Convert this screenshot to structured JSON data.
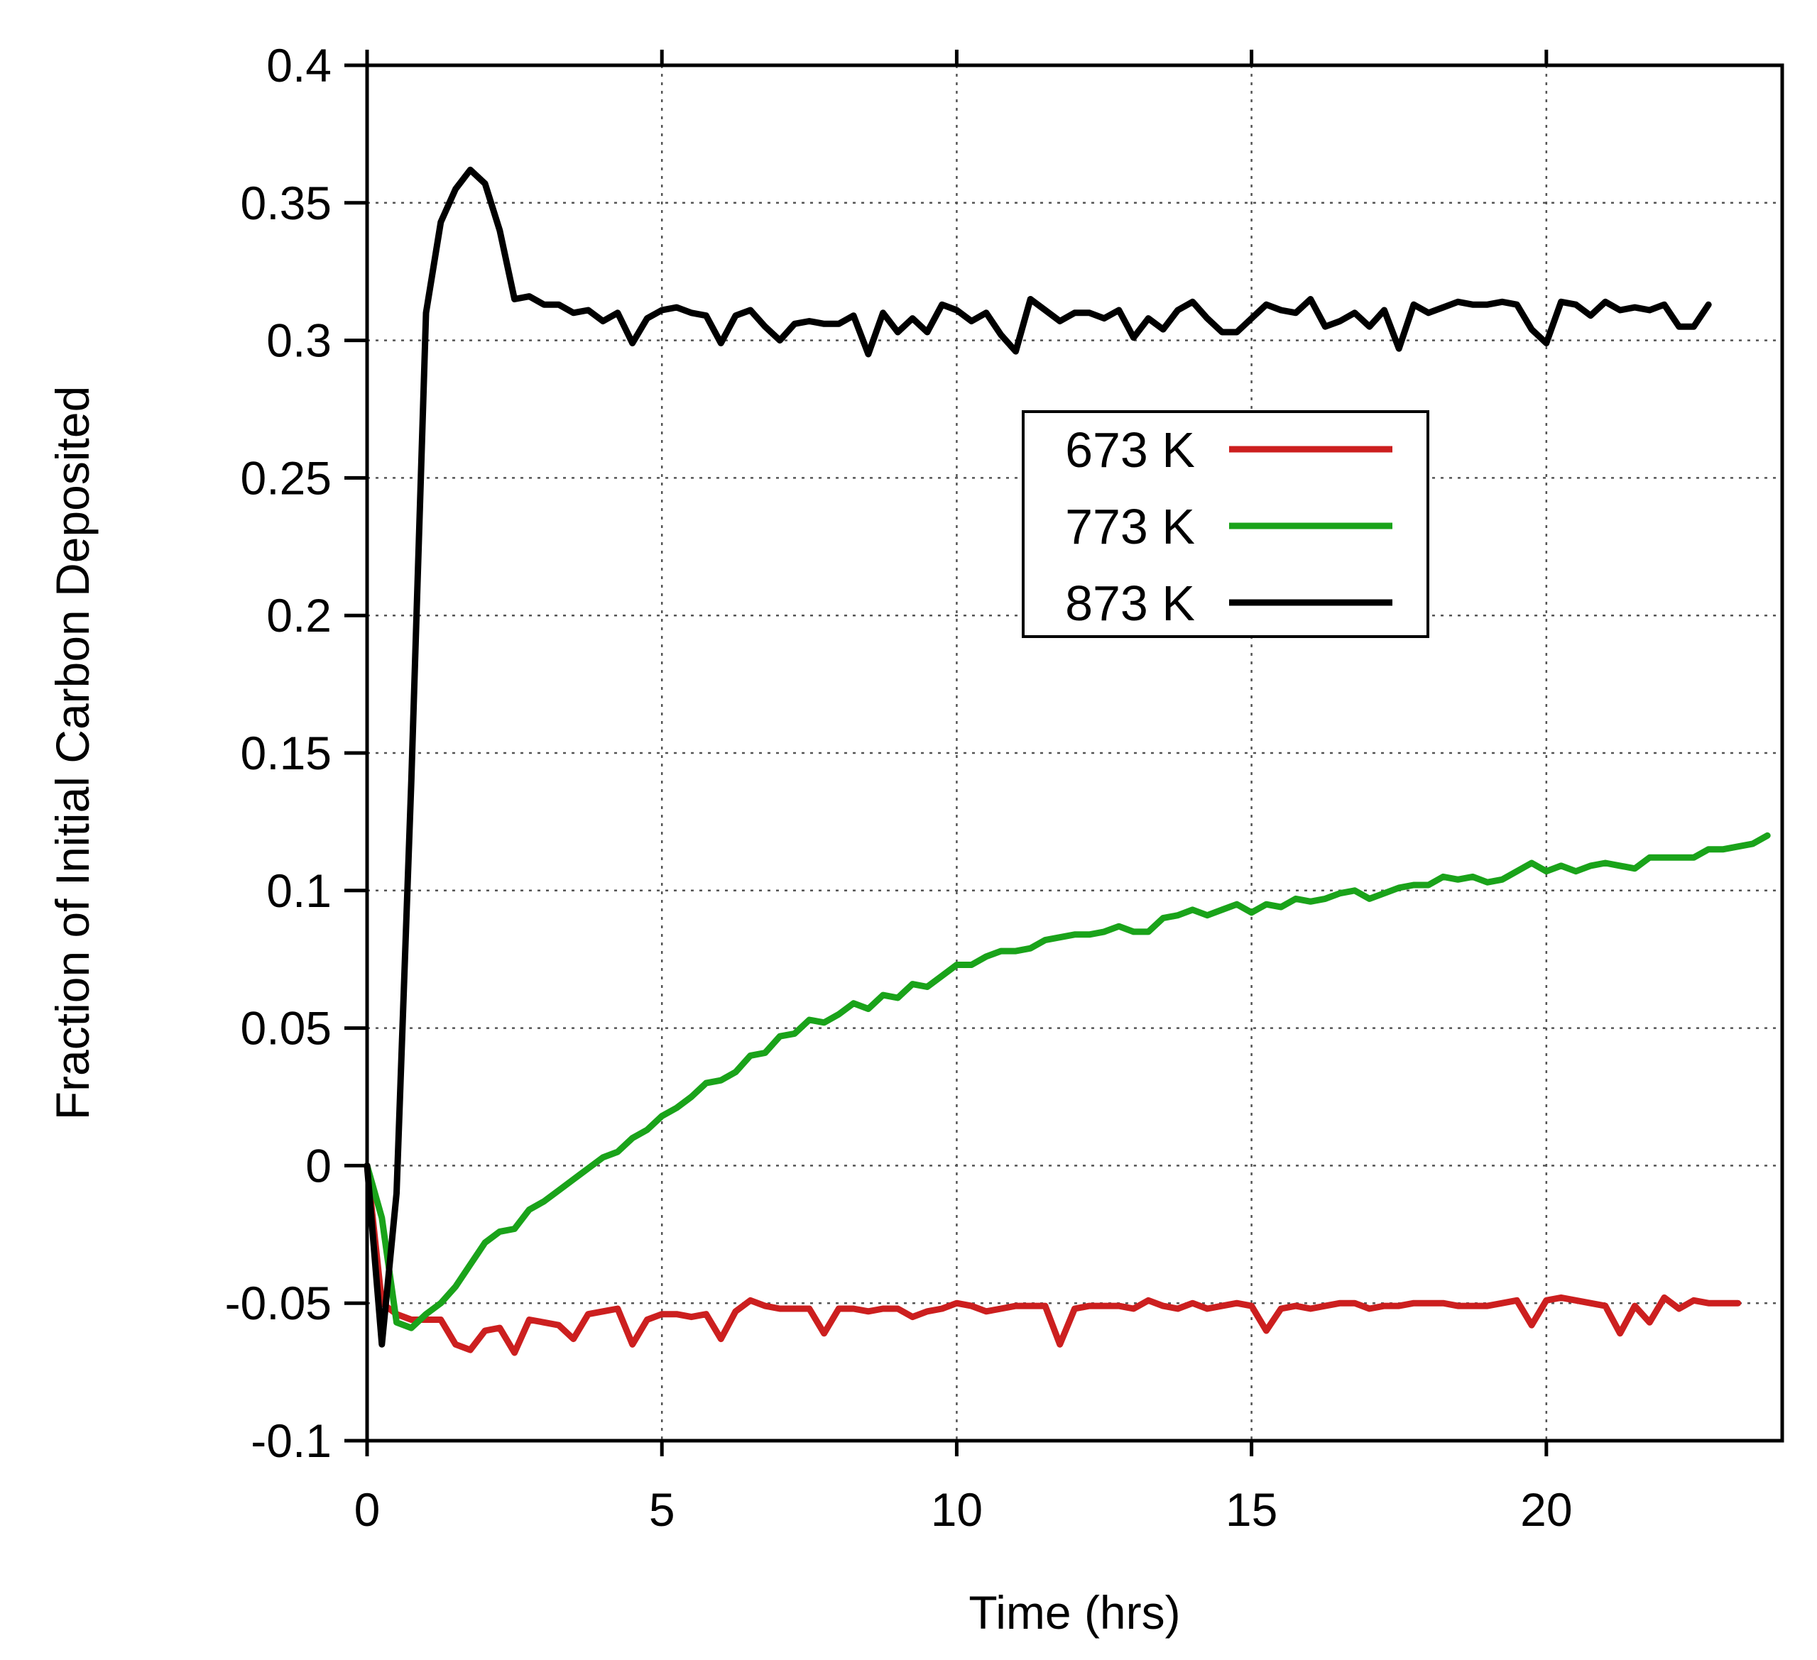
{
  "chart_data": {
    "type": "line",
    "title": "",
    "xlabel": "Time (hrs)",
    "ylabel": "Fraction of Initial Carbon Deposited",
    "xlim": [
      0,
      24
    ],
    "ylim": [
      -0.1,
      0.4
    ],
    "xticks": [
      0,
      5,
      10,
      15,
      20
    ],
    "xtick_labels": [
      "0",
      "5",
      "10",
      "15",
      "20"
    ],
    "yticks": [
      -0.1,
      -0.05,
      0,
      0.05,
      0.1,
      0.15,
      0.2,
      0.25,
      0.3,
      0.35,
      0.4
    ],
    "ytick_labels": [
      "-0.1",
      "-0.05",
      "0",
      "0.05",
      "0.1",
      "0.15",
      "0.2",
      "0.25",
      "0.3",
      "0.35",
      "0.4"
    ],
    "grid": true,
    "legend_position": "upper-center-right",
    "series": [
      {
        "name": "673 K",
        "color": "#cc1f1f",
        "x": [
          0,
          0.25,
          0.5,
          0.75,
          1.0,
          1.25,
          1.5,
          1.75,
          2.0,
          2.25,
          2.5,
          2.75,
          3.0,
          3.25,
          3.5,
          3.75,
          4.0,
          4.25,
          4.5,
          4.75,
          5.0,
          5.25,
          5.5,
          5.75,
          6.0,
          6.25,
          6.5,
          6.75,
          7.0,
          7.25,
          7.5,
          7.75,
          8.0,
          8.25,
          8.5,
          8.75,
          9.0,
          9.25,
          9.5,
          9.75,
          10.0,
          10.25,
          10.5,
          10.75,
          11.0,
          11.25,
          11.5,
          11.75,
          12.0,
          12.25,
          12.5,
          12.75,
          13.0,
          13.25,
          13.5,
          13.75,
          14.0,
          14.25,
          14.5,
          14.75,
          15.0,
          15.25,
          15.5,
          15.75,
          16.0,
          16.25,
          16.5,
          16.75,
          17.0,
          17.25,
          17.5,
          17.75,
          18.0,
          18.25,
          18.5,
          18.75,
          19.0,
          19.25,
          19.5,
          19.75,
          20.0,
          20.25,
          20.5,
          20.75,
          21.0,
          21.25,
          21.5,
          21.75,
          22.0,
          22.25,
          22.5,
          22.75,
          23.0,
          23.25
        ],
        "y": [
          0,
          -0.05,
          -0.054,
          -0.056,
          -0.056,
          -0.056,
          -0.065,
          -0.067,
          -0.06,
          -0.059,
          -0.068,
          -0.056,
          -0.057,
          -0.058,
          -0.063,
          -0.054,
          -0.053,
          -0.052,
          -0.065,
          -0.056,
          -0.054,
          -0.054,
          -0.055,
          -0.054,
          -0.063,
          -0.053,
          -0.049,
          -0.051,
          -0.052,
          -0.052,
          -0.052,
          -0.061,
          -0.052,
          -0.052,
          -0.053,
          -0.052,
          -0.052,
          -0.055,
          -0.053,
          -0.052,
          -0.05,
          -0.051,
          -0.053,
          -0.052,
          -0.051,
          -0.051,
          -0.051,
          -0.065,
          -0.052,
          -0.051,
          -0.051,
          -0.051,
          -0.052,
          -0.049,
          -0.051,
          -0.052,
          -0.05,
          -0.052,
          -0.051,
          -0.05,
          -0.051,
          -0.06,
          -0.052,
          -0.051,
          -0.052,
          -0.051,
          -0.05,
          -0.05,
          -0.052,
          -0.051,
          -0.051,
          -0.05,
          -0.05,
          -0.05,
          -0.051,
          -0.051,
          -0.051,
          -0.05,
          -0.049,
          -0.058,
          -0.049,
          -0.048,
          -0.049,
          -0.05,
          -0.051,
          -0.061,
          -0.051,
          -0.057,
          -0.048,
          -0.052,
          -0.049,
          -0.05,
          -0.05,
          -0.05
        ]
      },
      {
        "name": "773 K",
        "color": "#1aa31a",
        "x": [
          0,
          0.25,
          0.5,
          0.75,
          1.0,
          1.25,
          1.5,
          1.75,
          2.0,
          2.25,
          2.5,
          2.75,
          3.0,
          3.25,
          3.5,
          3.75,
          4.0,
          4.25,
          4.5,
          4.75,
          5.0,
          5.25,
          5.5,
          5.75,
          6.0,
          6.25,
          6.5,
          6.75,
          7.0,
          7.25,
          7.5,
          7.75,
          8.0,
          8.25,
          8.5,
          8.75,
          9.0,
          9.25,
          9.5,
          9.75,
          10.0,
          10.25,
          10.5,
          10.75,
          11.0,
          11.25,
          11.5,
          11.75,
          12.0,
          12.25,
          12.5,
          12.75,
          13.0,
          13.25,
          13.5,
          13.75,
          14.0,
          14.25,
          14.5,
          14.75,
          15.0,
          15.25,
          15.5,
          15.75,
          16.0,
          16.25,
          16.5,
          16.75,
          17.0,
          17.25,
          17.5,
          17.75,
          18.0,
          18.25,
          18.5,
          18.75,
          19.0,
          19.25,
          19.5,
          19.75,
          20.0,
          20.25,
          20.5,
          20.75,
          21.0,
          21.25,
          21.5,
          21.75,
          22.0,
          22.25,
          22.5,
          22.75,
          23.0,
          23.25,
          23.5,
          23.75
        ],
        "y": [
          0,
          -0.019,
          -0.057,
          -0.059,
          -0.054,
          -0.05,
          -0.044,
          -0.036,
          -0.028,
          -0.024,
          -0.023,
          -0.016,
          -0.013,
          -0.009,
          -0.005,
          -0.001,
          0.003,
          0.005,
          0.01,
          0.013,
          0.018,
          0.021,
          0.025,
          0.03,
          0.031,
          0.034,
          0.04,
          0.041,
          0.047,
          0.048,
          0.053,
          0.052,
          0.055,
          0.059,
          0.057,
          0.062,
          0.061,
          0.066,
          0.065,
          0.069,
          0.073,
          0.073,
          0.076,
          0.078,
          0.078,
          0.079,
          0.082,
          0.083,
          0.084,
          0.084,
          0.085,
          0.087,
          0.085,
          0.085,
          0.09,
          0.091,
          0.093,
          0.091,
          0.093,
          0.095,
          0.092,
          0.095,
          0.094,
          0.097,
          0.096,
          0.097,
          0.099,
          0.1,
          0.097,
          0.099,
          0.101,
          0.102,
          0.102,
          0.105,
          0.104,
          0.105,
          0.103,
          0.104,
          0.107,
          0.11,
          0.107,
          0.109,
          0.107,
          0.109,
          0.11,
          0.109,
          0.108,
          0.112,
          0.112,
          0.112,
          0.112,
          0.115,
          0.115,
          0.116,
          0.117,
          0.12
        ]
      },
      {
        "name": "873 K",
        "color": "#000000",
        "x": [
          0,
          0.25,
          0.5,
          0.75,
          1.0,
          1.25,
          1.5,
          1.75,
          2.0,
          2.25,
          2.5,
          2.75,
          3.0,
          3.25,
          3.5,
          3.75,
          4.0,
          4.25,
          4.5,
          4.75,
          5.0,
          5.25,
          5.5,
          5.75,
          6.0,
          6.25,
          6.5,
          6.75,
          7.0,
          7.25,
          7.5,
          7.75,
          8.0,
          8.25,
          8.5,
          8.75,
          9.0,
          9.25,
          9.5,
          9.75,
          10.0,
          10.25,
          10.5,
          10.75,
          11.0,
          11.25,
          11.5,
          11.75,
          12.0,
          12.25,
          12.5,
          12.75,
          13.0,
          13.25,
          13.5,
          13.75,
          14.0,
          14.25,
          14.5,
          14.75,
          15.0,
          15.25,
          15.5,
          15.75,
          16.0,
          16.25,
          16.5,
          16.75,
          17.0,
          17.25,
          17.5,
          17.75,
          18.0,
          18.25,
          18.5,
          18.75,
          19.0,
          19.25,
          19.5,
          19.75,
          20.0,
          20.25,
          20.5,
          20.75,
          21.0,
          21.25,
          21.5,
          21.75,
          22.0,
          22.25,
          22.5,
          22.75
        ],
        "y": [
          0,
          -0.065,
          -0.01,
          0.14,
          0.31,
          0.343,
          0.355,
          0.362,
          0.357,
          0.34,
          0.315,
          0.316,
          0.313,
          0.313,
          0.31,
          0.311,
          0.307,
          0.31,
          0.299,
          0.308,
          0.311,
          0.312,
          0.31,
          0.309,
          0.299,
          0.309,
          0.311,
          0.305,
          0.3,
          0.306,
          0.307,
          0.306,
          0.306,
          0.309,
          0.295,
          0.31,
          0.303,
          0.308,
          0.303,
          0.313,
          0.311,
          0.307,
          0.31,
          0.302,
          0.296,
          0.315,
          0.311,
          0.307,
          0.31,
          0.31,
          0.308,
          0.311,
          0.301,
          0.308,
          0.304,
          0.311,
          0.314,
          0.308,
          0.303,
          0.303,
          0.308,
          0.313,
          0.311,
          0.31,
          0.315,
          0.305,
          0.307,
          0.31,
          0.305,
          0.311,
          0.297,
          0.313,
          0.31,
          0.312,
          0.314,
          0.313,
          0.313,
          0.314,
          0.313,
          0.304,
          0.299,
          0.314,
          0.313,
          0.309,
          0.314,
          0.311,
          0.312,
          0.311,
          0.313,
          0.305,
          0.305,
          0.313
        ]
      }
    ]
  }
}
